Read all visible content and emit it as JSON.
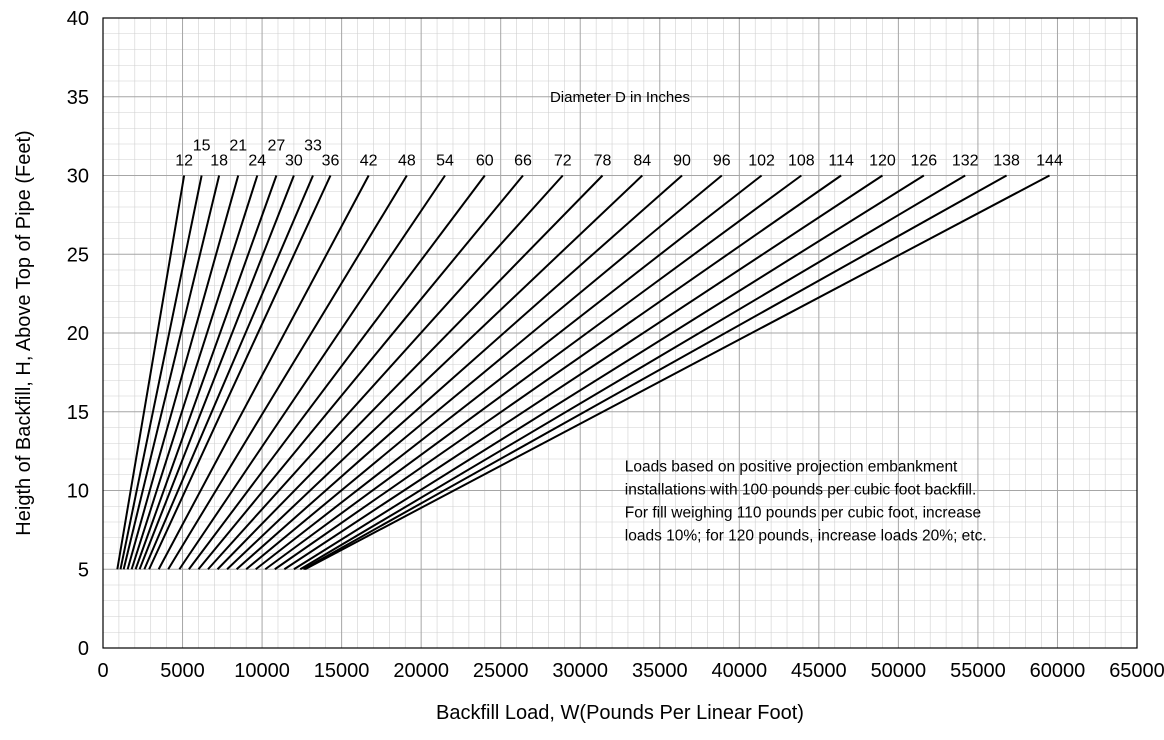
{
  "chart_data": {
    "type": "line",
    "title": "",
    "xlabel": "Backfill Load, W(Pounds Per Linear Foot)",
    "ylabel": "Heigth of Backfill, H, Above Top of Pipe (Feet)",
    "xlim": [
      0,
      65000
    ],
    "ylim": [
      0,
      40
    ],
    "x_ticks": [
      "0",
      "5000",
      "10000",
      "15000",
      "20000",
      "25000",
      "30000",
      "35000",
      "40000",
      "45000",
      "50000",
      "55000",
      "60000",
      "65000"
    ],
    "y_ticks": [
      "0",
      "5",
      "10",
      "15",
      "20",
      "25",
      "30",
      "35",
      "40"
    ],
    "grid": true,
    "series_heading": "Diameter D in Inches",
    "series": [
      {
        "name": "12",
        "x": [
          900,
          5100
        ],
        "y": [
          5,
          30
        ]
      },
      {
        "name": "15",
        "x": [
          1100,
          6200
        ],
        "y": [
          5,
          30
        ]
      },
      {
        "name": "18",
        "x": [
          1300,
          7300
        ],
        "y": [
          5,
          30
        ]
      },
      {
        "name": "21",
        "x": [
          1550,
          8500
        ],
        "y": [
          5,
          30
        ]
      },
      {
        "name": "24",
        "x": [
          1800,
          9700
        ],
        "y": [
          5,
          30
        ]
      },
      {
        "name": "27",
        "x": [
          2050,
          10900
        ],
        "y": [
          5,
          30
        ]
      },
      {
        "name": "30",
        "x": [
          2300,
          12000
        ],
        "y": [
          5,
          30
        ]
      },
      {
        "name": "33",
        "x": [
          2600,
          13200
        ],
        "y": [
          5,
          30
        ]
      },
      {
        "name": "36",
        "x": [
          2900,
          14300
        ],
        "y": [
          5,
          30
        ]
      },
      {
        "name": "42",
        "x": [
          3500,
          16700
        ],
        "y": [
          5,
          30
        ]
      },
      {
        "name": "48",
        "x": [
          4100,
          19100
        ],
        "y": [
          5,
          30
        ]
      },
      {
        "name": "54",
        "x": [
          4800,
          21500
        ],
        "y": [
          5,
          30
        ]
      },
      {
        "name": "60",
        "x": [
          5400,
          24000
        ],
        "y": [
          5,
          30
        ]
      },
      {
        "name": "66",
        "x": [
          6000,
          26400
        ],
        "y": [
          5,
          30
        ]
      },
      {
        "name": "72",
        "x": [
          6600,
          28900
        ],
        "y": [
          5,
          30
        ]
      },
      {
        "name": "78",
        "x": [
          7200,
          31400
        ],
        "y": [
          5,
          30
        ]
      },
      {
        "name": "84",
        "x": [
          7800,
          33900
        ],
        "y": [
          5,
          30
        ]
      },
      {
        "name": "90",
        "x": [
          8400,
          36400
        ],
        "y": [
          5,
          30
        ]
      },
      {
        "name": "96",
        "x": [
          9000,
          38900
        ],
        "y": [
          5,
          30
        ]
      },
      {
        "name": "102",
        "x": [
          9600,
          41400
        ],
        "y": [
          5,
          30
        ]
      },
      {
        "name": "108",
        "x": [
          10200,
          43900
        ],
        "y": [
          5,
          30
        ]
      },
      {
        "name": "114",
        "x": [
          10800,
          46400
        ],
        "y": [
          5,
          30
        ]
      },
      {
        "name": "120",
        "x": [
          11400,
          49000
        ],
        "y": [
          5,
          30
        ]
      },
      {
        "name": "126",
        "x": [
          12000,
          51600
        ],
        "y": [
          5,
          30
        ]
      },
      {
        "name": "132",
        "x": [
          12400,
          54200
        ],
        "y": [
          5,
          30
        ]
      },
      {
        "name": "138",
        "x": [
          12600,
          56800
        ],
        "y": [
          5,
          30
        ]
      },
      {
        "name": "144",
        "x": [
          12700,
          59500
        ],
        "y": [
          5,
          30
        ]
      }
    ],
    "note": [
      "Loads based on positive projection embankment",
      "installations with 100 pounds per cubic foot backfill.",
      "For fill weighing 110 pounds per cubic foot, increase",
      "loads 10%; for 120 pounds, increase loads 20%; etc."
    ],
    "colors": {
      "line": "#000000",
      "minor_grid": "#d0d0d0",
      "major_grid": "#a6a6a6"
    }
  }
}
